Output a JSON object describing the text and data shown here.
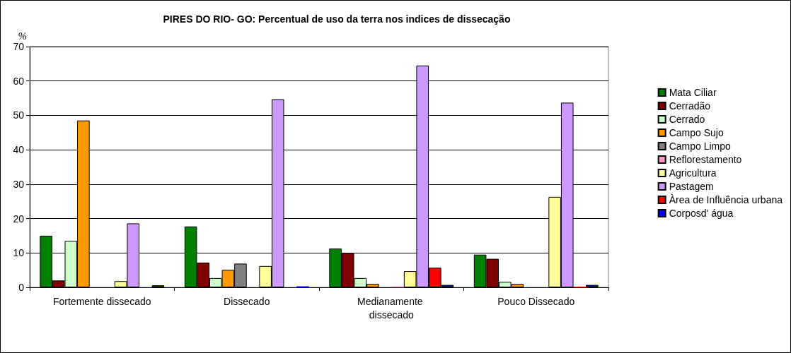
{
  "chart_data": {
    "type": "bar",
    "title": "PIRES DO RIO- GO: Percentual de uso da terra nos indices de dissecação",
    "ylabel": "%",
    "categories": [
      "Fortemente dissecado",
      "Dissecado",
      "Medianamente dissecado",
      "Pouco Dissecado"
    ],
    "series": [
      {
        "name": "Mata Ciliar",
        "color": "#007f00",
        "values": [
          15.0,
          17.7,
          11.3,
          9.5
        ]
      },
      {
        "name": "Cerradão",
        "color": "#7f0000",
        "values": [
          2.0,
          7.2,
          10.0,
          8.3
        ]
      },
      {
        "name": "Cerrado",
        "color": "#ccffcc",
        "values": [
          13.5,
          2.7,
          2.7,
          1.6
        ]
      },
      {
        "name": "Campo Sujo",
        "color": "#ff9900",
        "values": [
          48.5,
          5.1,
          1.0,
          1.0
        ]
      },
      {
        "name": "Campo Limpo",
        "color": "#808080",
        "values": [
          null,
          6.9,
          null,
          null
        ]
      },
      {
        "name": "Reflorestamento",
        "color": "#ff99cc",
        "values": [
          null,
          null,
          0.3,
          null
        ]
      },
      {
        "name": "Agricultura",
        "color": "#ffff99",
        "values": [
          1.8,
          6.2,
          4.7,
          26.3
        ]
      },
      {
        "name": "Pastagem",
        "color": "#cc99ff",
        "values": [
          18.6,
          54.7,
          64.5,
          53.7
        ]
      },
      {
        "name": "Àrea de Influência urbana",
        "color": "#ff0000",
        "values": [
          null,
          null,
          5.7,
          0.2
        ]
      },
      {
        "name": "Corposd' água",
        "color": "#0000ff",
        "values": [
          0.6,
          0.3,
          0.7,
          0.7
        ]
      }
    ],
    "ylim": [
      0,
      70
    ],
    "yticks": [
      0,
      10,
      20,
      30,
      40,
      50,
      60,
      70
    ],
    "grid": "y",
    "legend": "right"
  }
}
